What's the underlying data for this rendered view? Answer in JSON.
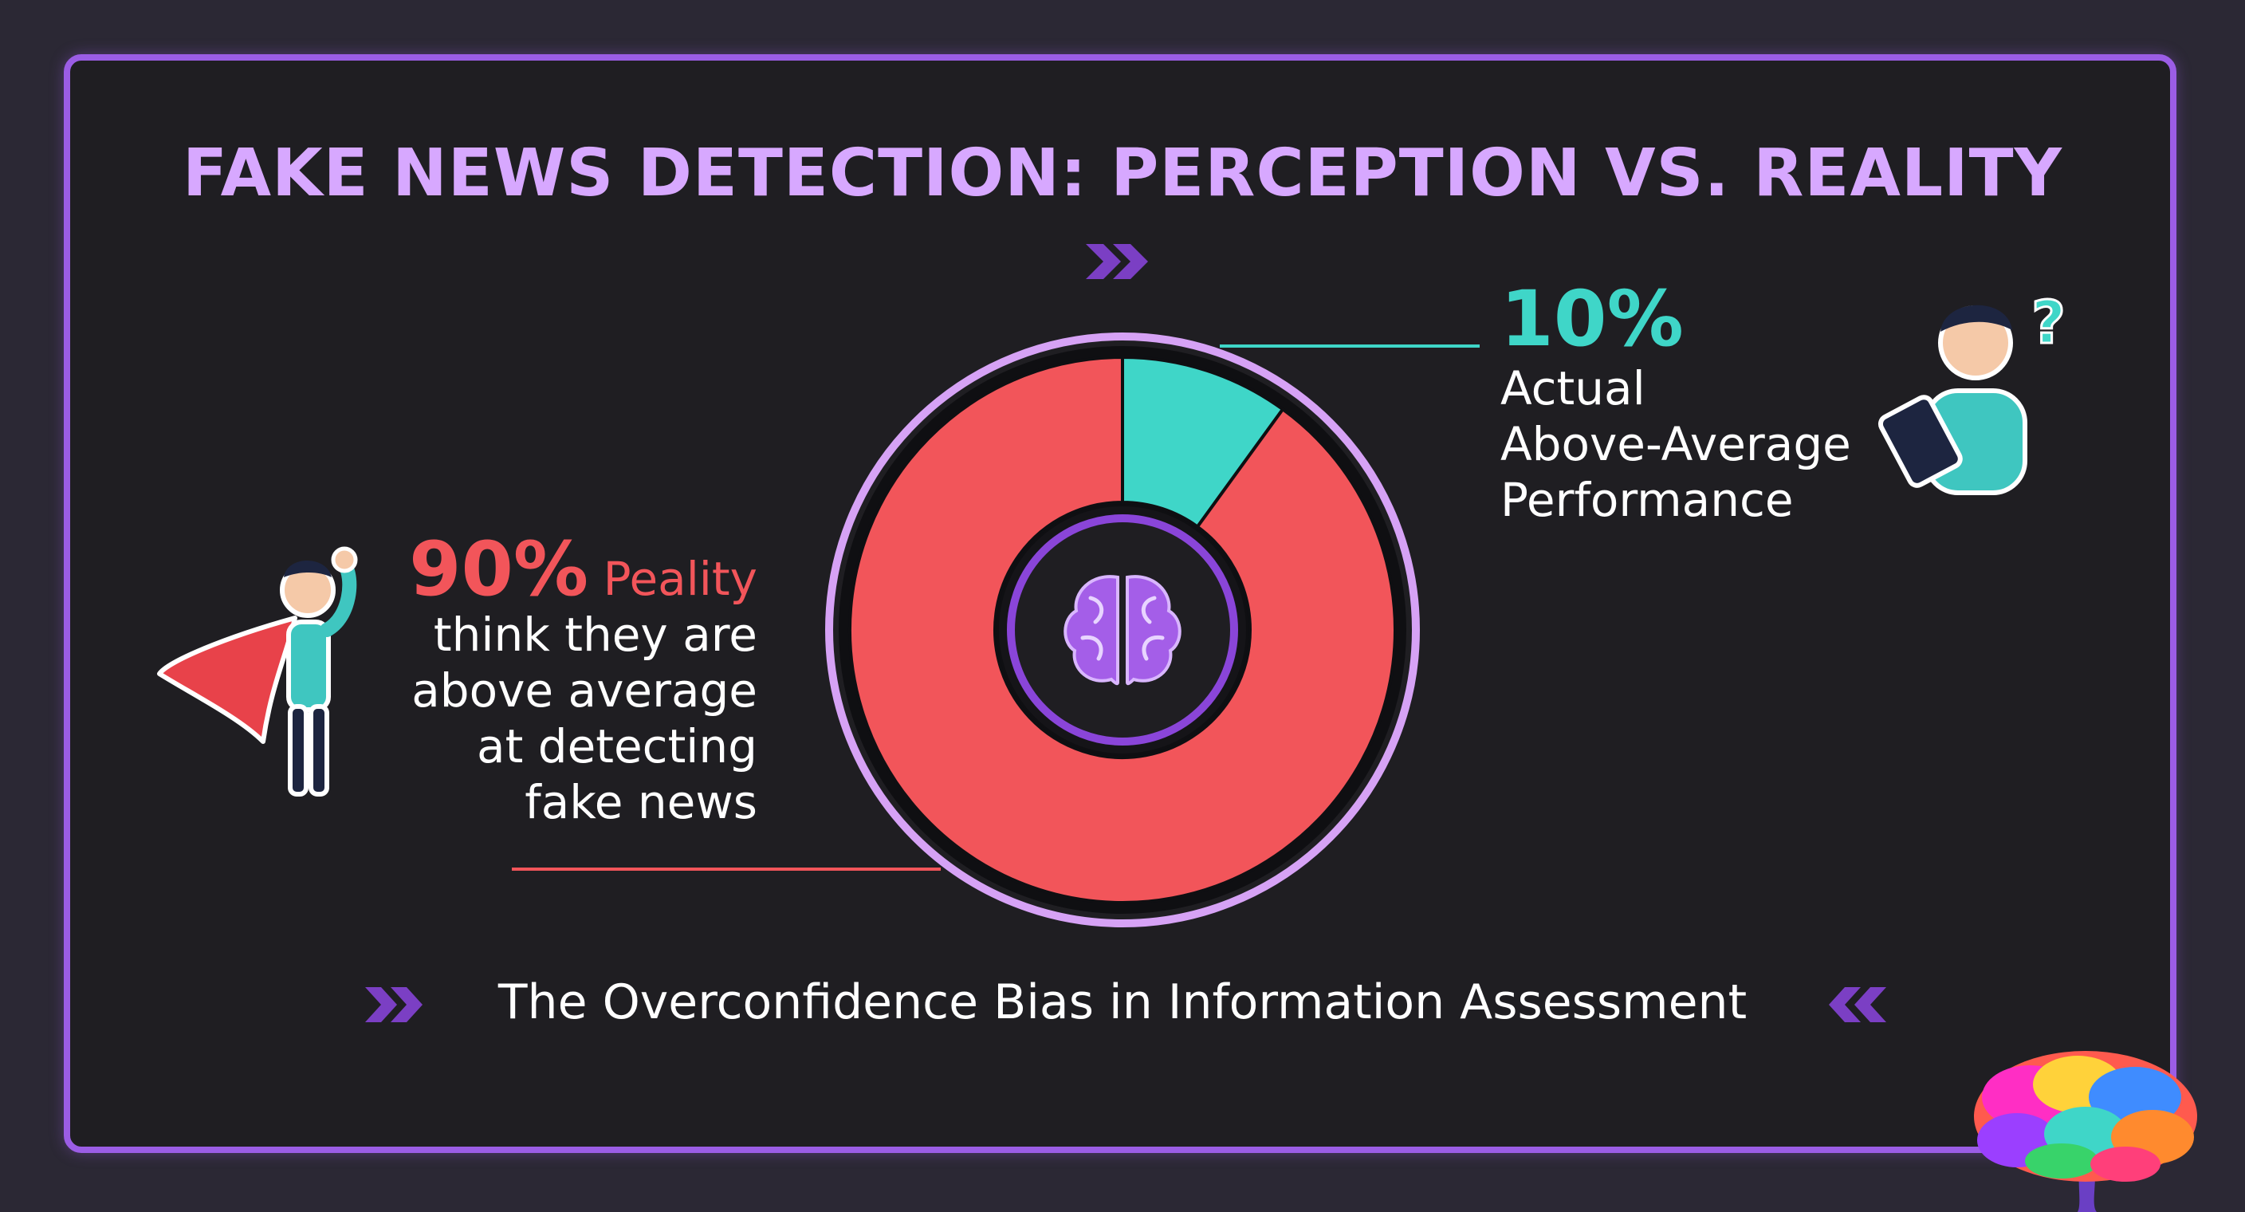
{
  "title": "FAKE NEWS DETECTION: PERCEPTION VS. REALITY",
  "subtitle": "The Overconfidence Bias in Information Assessment",
  "colors": {
    "perception": "#f2555a",
    "reality": "#3fd6c8",
    "accent": "#9b5de5",
    "title": "#d7a8ff"
  },
  "icons": [
    "double-chevron-right-icon",
    "brain-icon",
    "superhero-icon",
    "confused-person-tablet-icon",
    "colorful-brain-logo-icon",
    "double-chevron-left-icon"
  ],
  "chart_data": {
    "type": "pie",
    "variant": "donut",
    "slices": [
      {
        "label_pct": "10%",
        "value": 10,
        "color": "#3fd6c8",
        "text": [
          "Actual",
          "Above-Average",
          "Performance"
        ]
      },
      {
        "label_pct": "90%",
        "value": 90,
        "color": "#f2555a",
        "label_word": "Peality",
        "text": [
          "think they are",
          "above average",
          "at detecting",
          "fake news"
        ]
      }
    ]
  }
}
